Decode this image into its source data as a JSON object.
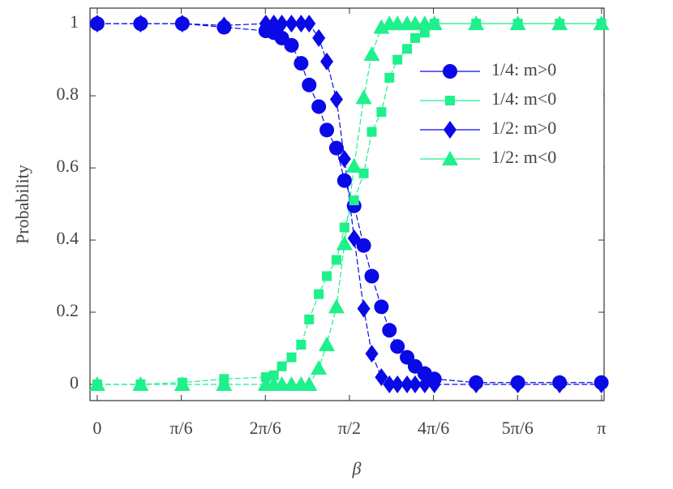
{
  "chart_data": {
    "type": "line",
    "xlabel": "β",
    "ylabel": "Probability",
    "x": [
      0,
      0.27,
      0.53,
      0.79,
      1.05,
      1.1,
      1.15,
      1.21,
      1.27,
      1.32,
      1.38,
      1.43,
      1.49,
      1.54,
      1.6,
      1.66,
      1.71,
      1.77,
      1.82,
      1.87,
      1.93,
      1.98,
      2.04,
      2.1,
      2.36,
      2.62,
      2.88,
      3.14
    ],
    "series": [
      {
        "name": "1/4: m>0",
        "color": "#0a0ae6",
        "marker": "circle",
        "values": [
          1,
          1,
          1,
          0.99,
          0.98,
          0.975,
          0.96,
          0.94,
          0.89,
          0.83,
          0.77,
          0.705,
          0.655,
          0.565,
          0.495,
          0.385,
          0.3,
          0.215,
          0.15,
          0.105,
          0.075,
          0.05,
          0.03,
          0.015,
          0.005,
          0.005,
          0.005,
          0.005
        ]
      },
      {
        "name": "1/4: m<0",
        "color": "#1ef08c",
        "marker": "square",
        "values": [
          0,
          0,
          0.005,
          0.015,
          0.02,
          0.025,
          0.05,
          0.075,
          0.11,
          0.18,
          0.25,
          0.3,
          0.345,
          0.435,
          0.51,
          0.585,
          0.7,
          0.755,
          0.85,
          0.9,
          0.93,
          0.96,
          0.975,
          1,
          1,
          1,
          1,
          1
        ]
      },
      {
        "name": "1/2: m>0",
        "color": "#0a0ae6",
        "marker": "diamond",
        "values": [
          1,
          1,
          1,
          0.995,
          1,
          1,
          1,
          1,
          1,
          1,
          0.96,
          0.895,
          0.79,
          0.625,
          0.405,
          0.21,
          0.085,
          0.02,
          0,
          0,
          0,
          0,
          0,
          0,
          0,
          0,
          0,
          0
        ]
      },
      {
        "name": "1/2: m<0",
        "color": "#1ef08c",
        "marker": "triangle",
        "values": [
          0,
          0,
          0,
          0,
          0,
          0,
          0,
          0,
          0,
          0,
          0.045,
          0.11,
          0.215,
          0.39,
          0.605,
          0.795,
          0.915,
          0.99,
          1,
          1,
          1,
          1,
          1,
          1,
          1,
          1,
          1,
          1
        ]
      }
    ],
    "xlim": [
      -0.045,
      3.157
    ],
    "xticks": [
      0,
      {
        "value": 0.5236,
        "label": "π/6"
      },
      {
        "value": 1.0472,
        "label": "2π/6"
      },
      {
        "value": 1.5708,
        "label": "π/2"
      },
      {
        "value": 2.0944,
        "label": "4π/6"
      },
      {
        "value": 2.618,
        "label": "5π/6"
      },
      {
        "value": 3.1416,
        "label": "π"
      }
    ],
    "ylim": [
      -0.045,
      1.043
    ],
    "yticks": [
      0,
      0.2,
      0.4,
      0.6,
      0.8,
      1
    ],
    "grid": false,
    "legend": "upper right"
  }
}
